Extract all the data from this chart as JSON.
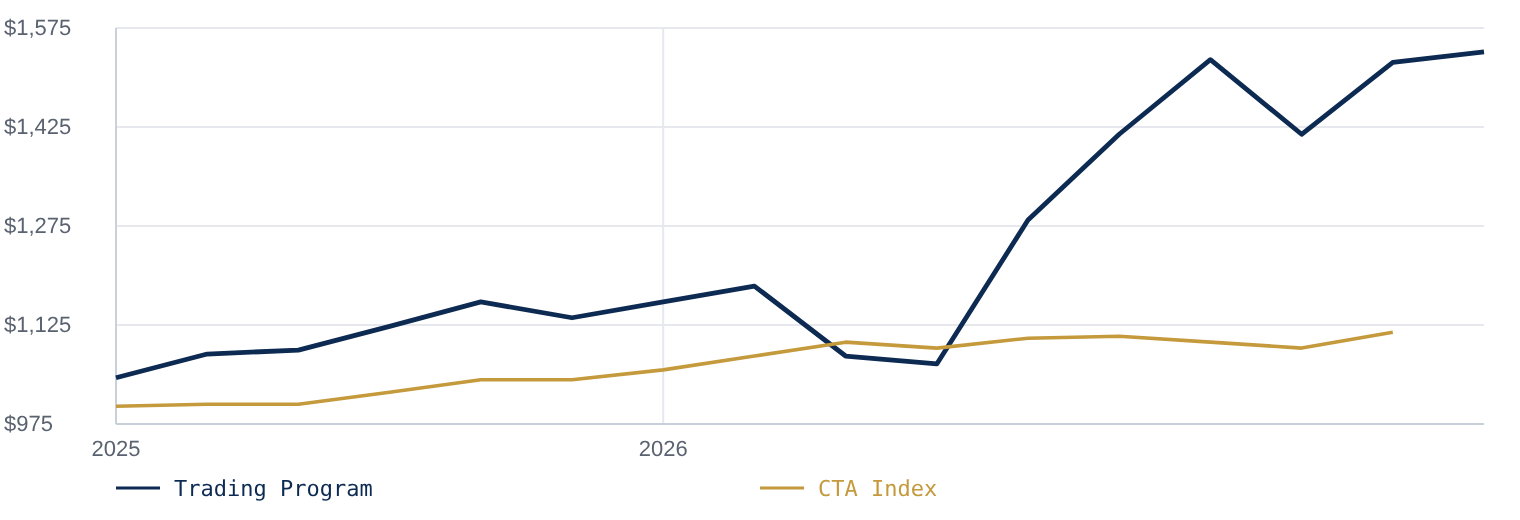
{
  "chart_data": {
    "type": "line",
    "categories": [
      "2025",
      null,
      null,
      null,
      null,
      null,
      "2026",
      null,
      null,
      null,
      null,
      null,
      null,
      null,
      null,
      null
    ],
    "series": [
      {
        "name": "Trading Program",
        "color": "#0d2b52",
        "values": [
          1045,
          1081,
          1087,
          1123,
          1160,
          1136,
          1160,
          1184,
          1078,
          1066,
          1284,
          1414,
          1527,
          1414,
          1523,
          1539
        ]
      },
      {
        "name": "CTA Index",
        "color": "#c49a3c",
        "values": [
          1002,
          1005,
          1005,
          1023,
          1042,
          1042,
          1057,
          1078,
          1099,
          1090,
          1105,
          1108,
          1099,
          1090,
          1114,
          null
        ]
      }
    ],
    "ylim": [
      975,
      1575
    ],
    "yticks": [
      {
        "value": 975,
        "label": "$975"
      },
      {
        "value": 1125,
        "label": "$1,125"
      },
      {
        "value": 1275,
        "label": "$1,275"
      },
      {
        "value": 1425,
        "label": "$1,425"
      },
      {
        "value": 1575,
        "label": "$1,575"
      }
    ],
    "grid": true,
    "legend": "bottom",
    "line_style": "solid",
    "marker": "none"
  }
}
